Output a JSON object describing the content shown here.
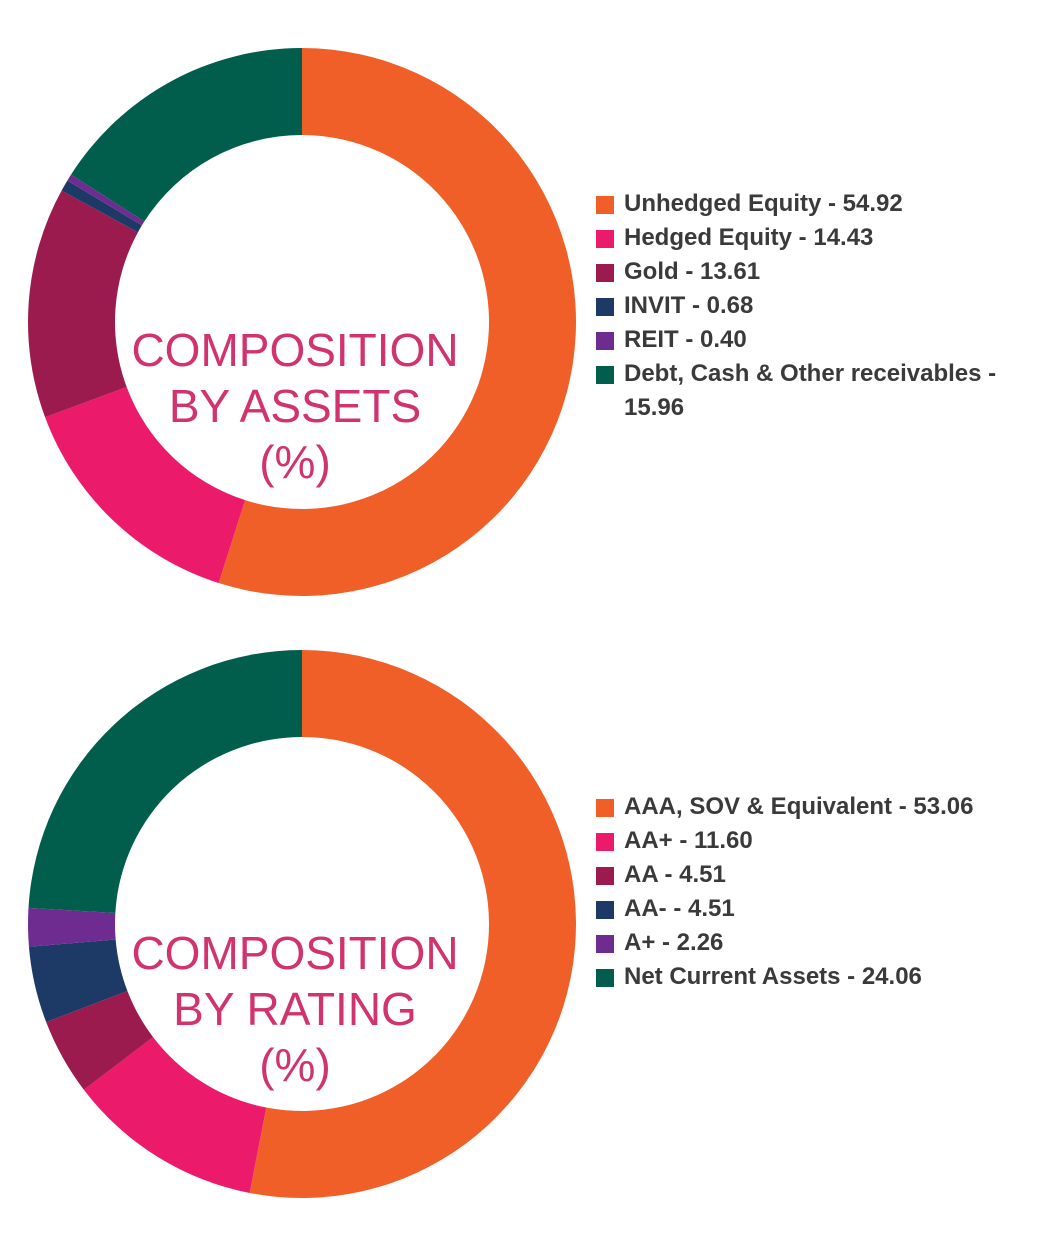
{
  "chart_data": [
    {
      "type": "pie",
      "donut": true,
      "title": "",
      "center_label": [
        "COMPOSITION",
        "BY ASSETS",
        "(%)"
      ],
      "categories": [
        "Unhedged Equity",
        "Hedged Equity",
        "Gold",
        "INVIT",
        "REIT",
        "Debt, Cash & Other receivables"
      ],
      "values": [
        54.92,
        14.43,
        13.61,
        0.68,
        0.4,
        15.96
      ],
      "colors": [
        "#f15f29",
        "#ec1a6b",
        "#9b1b4f",
        "#1d3a66",
        "#6e2c91",
        "#015e4c"
      ],
      "legend_labels": [
        "Unhedged Equity - 54.92",
        "Hedged Equity - 14.43",
        "Gold - 13.61",
        "INVIT - 0.68",
        "REIT - 0.40",
        "Debt, Cash & Other receivables - 15.96"
      ],
      "legend_position": "right"
    },
    {
      "type": "pie",
      "donut": true,
      "title": "",
      "center_label": [
        "COMPOSITION",
        "BY RATING",
        "(%)"
      ],
      "categories": [
        "AAA, SOV & Equivalent",
        "AA+",
        "AA",
        "AA-",
        "A+",
        "Net Current Assets"
      ],
      "values": [
        53.06,
        11.6,
        4.51,
        4.51,
        2.26,
        24.06
      ],
      "colors": [
        "#f15f29",
        "#ec1a6b",
        "#9b1b4f",
        "#1d3a66",
        "#6e2c91",
        "#015e4c"
      ],
      "legend_labels": [
        "AAA, SOV & Equivalent - 53.06",
        "AA+ - 11.60",
        "AA - 4.51",
        "AA- - 4.51",
        "A+ - 2.26",
        "Net Current Assets - 24.06"
      ],
      "legend_position": "right"
    }
  ]
}
